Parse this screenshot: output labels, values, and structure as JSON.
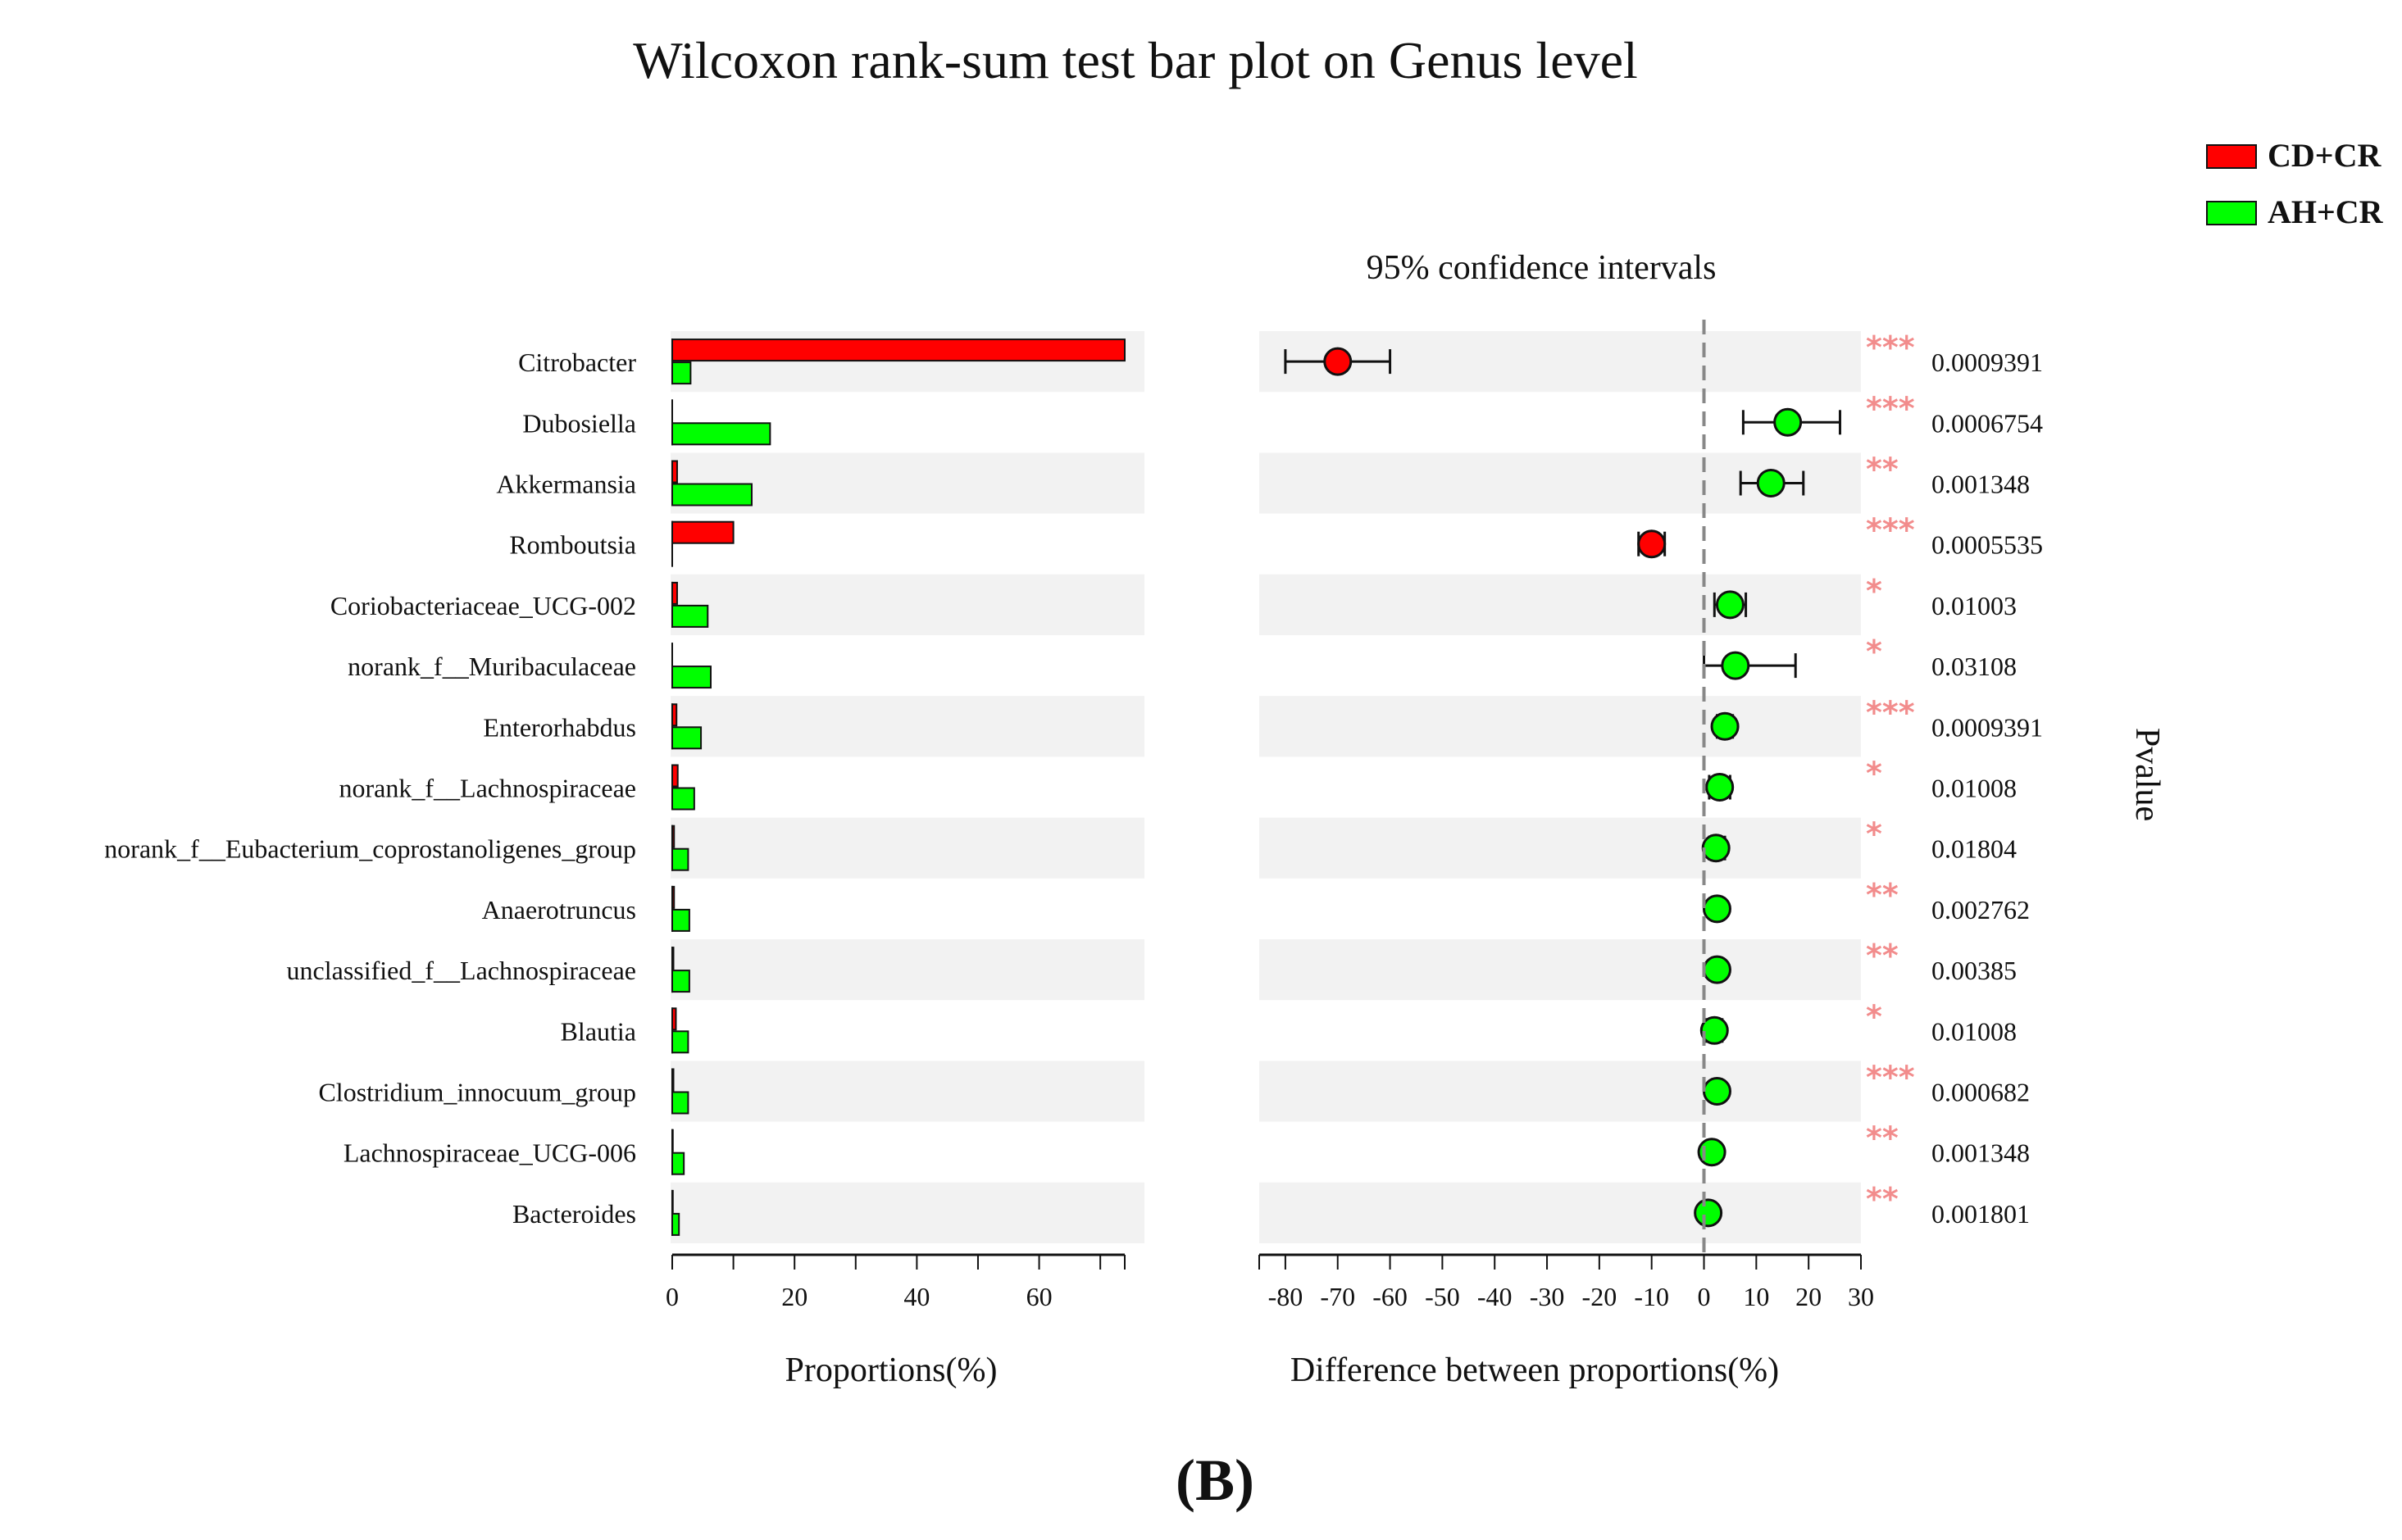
{
  "chart_data": {
    "type": "bar",
    "title": "Wilcoxon rank-sum test bar plot on Genus level",
    "figure_label": "(B)",
    "legend": [
      {
        "name": "CD+CR",
        "color": "#ff0000"
      },
      {
        "name": "AH+CR",
        "color": "#00ff00"
      }
    ],
    "left_panel": {
      "xlabel": "Proportions(%)",
      "xlim": [
        0,
        74
      ],
      "ticks": [
        0,
        20,
        40,
        60
      ]
    },
    "right_panel": {
      "title": "95% confidence intervals",
      "xlabel": "Difference between proportions(%)",
      "xlim": [
        -85,
        30
      ],
      "ticks": [
        -80,
        -70,
        -60,
        -50,
        -40,
        -30,
        -20,
        -10,
        0,
        10,
        20,
        30
      ],
      "pvalue_label": "Pvalue"
    },
    "highlight_color": "#ff0000",
    "genera": [
      {
        "name": "Citrobacter",
        "highlight": false,
        "cd_cr": 74.0,
        "ah_cr": 3.0,
        "diff": -70.0,
        "ci_low": -80.0,
        "ci_high": -60.0,
        "stars": "***",
        "pvalue": "0.0009391"
      },
      {
        "name": "Dubosiella",
        "highlight": false,
        "cd_cr": 0.0,
        "ah_cr": 16.0,
        "diff": 16.0,
        "ci_low": 7.5,
        "ci_high": 26.0,
        "stars": "***",
        "pvalue": "0.0006754"
      },
      {
        "name": "Akkermansia",
        "highlight": true,
        "cd_cr": 0.8,
        "ah_cr": 13.0,
        "diff": 12.8,
        "ci_low": 7.0,
        "ci_high": 19.0,
        "stars": "**",
        "pvalue": "0.001348"
      },
      {
        "name": "Romboutsia",
        "highlight": false,
        "cd_cr": 10.0,
        "ah_cr": 0.0,
        "diff": -10.0,
        "ci_low": -12.5,
        "ci_high": -7.5,
        "stars": "***",
        "pvalue": "0.0005535"
      },
      {
        "name": "Coriobacteriaceae_UCG-002",
        "highlight": false,
        "cd_cr": 0.8,
        "ah_cr": 5.8,
        "diff": 5.0,
        "ci_low": 2.0,
        "ci_high": 8.0,
        "stars": "*",
        "pvalue": "0.01003"
      },
      {
        "name": "norank_f__Muribaculaceae",
        "highlight": false,
        "cd_cr": 0.0,
        "ah_cr": 6.3,
        "diff": 6.0,
        "ci_low": 0.0,
        "ci_high": 17.5,
        "stars": "*",
        "pvalue": "0.03108"
      },
      {
        "name": "Enterorhabdus",
        "highlight": false,
        "cd_cr": 0.7,
        "ah_cr": 4.7,
        "diff": 4.0,
        "ci_low": 2.5,
        "ci_high": 5.5,
        "stars": "***",
        "pvalue": "0.0009391"
      },
      {
        "name": "norank_f__Lachnospiraceae",
        "highlight": false,
        "cd_cr": 0.9,
        "ah_cr": 3.6,
        "diff": 3.0,
        "ci_low": 1.0,
        "ci_high": 5.0,
        "stars": "*",
        "pvalue": "0.01008"
      },
      {
        "name": "norank_f__Eubacterium_coprostanoligenes_group",
        "highlight": false,
        "cd_cr": 0.3,
        "ah_cr": 2.6,
        "diff": 2.3,
        "ci_low": 1.0,
        "ci_high": 4.0,
        "stars": "*",
        "pvalue": "0.01804"
      },
      {
        "name": "Anaerotruncus",
        "highlight": false,
        "cd_cr": 0.3,
        "ah_cr": 2.8,
        "diff": 2.5,
        "ci_low": 1.5,
        "ci_high": 3.5,
        "stars": "**",
        "pvalue": "0.002762"
      },
      {
        "name": "unclassified_f__Lachnospiraceae",
        "highlight": false,
        "cd_cr": 0.2,
        "ah_cr": 2.8,
        "diff": 2.5,
        "ci_low": 1.5,
        "ci_high": 3.5,
        "stars": "**",
        "pvalue": "0.00385"
      },
      {
        "name": "Blautia",
        "highlight": false,
        "cd_cr": 0.6,
        "ah_cr": 2.6,
        "diff": 2.0,
        "ci_low": 0.5,
        "ci_high": 3.5,
        "stars": "*",
        "pvalue": "0.01008"
      },
      {
        "name": "Clostridium_innocuum_group",
        "highlight": false,
        "cd_cr": 0.2,
        "ah_cr": 2.6,
        "diff": 2.5,
        "ci_low": 1.5,
        "ci_high": 3.5,
        "stars": "***",
        "pvalue": "0.000682"
      },
      {
        "name": "Lachnospiraceae_UCG-006",
        "highlight": false,
        "cd_cr": 0.1,
        "ah_cr": 1.9,
        "diff": 1.5,
        "ci_low": 0.5,
        "ci_high": 2.5,
        "stars": "**",
        "pvalue": "0.001348"
      },
      {
        "name": "Bacteroides",
        "highlight": false,
        "cd_cr": 0.1,
        "ah_cr": 1.1,
        "diff": 0.8,
        "ci_low": -0.5,
        "ci_high": 2.0,
        "stars": "**",
        "pvalue": "0.001801"
      }
    ]
  }
}
